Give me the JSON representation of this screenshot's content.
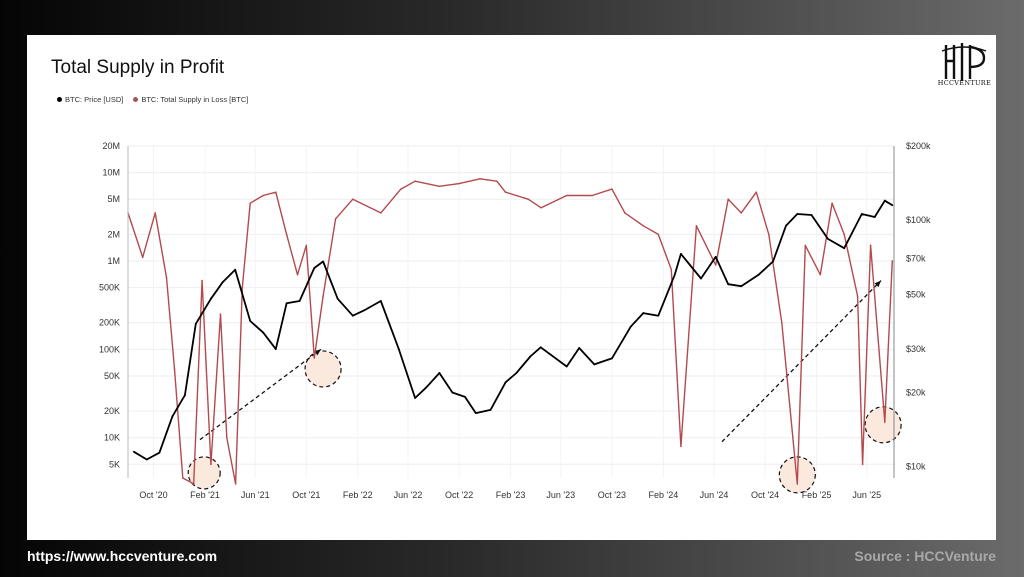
{
  "footer": {
    "url": "https://www.hccventure.com",
    "source": "Source : HCCVenture"
  },
  "logo": {
    "text": "HCCVENTURE",
    "icon": "hcc-logo-icon"
  },
  "colors": {
    "price": "#000000",
    "loss": "#b34a4e",
    "loss_upper": "#9e5a57",
    "circle_fill": "#fbe9de"
  },
  "chart_data": {
    "type": "line",
    "title": "Total Supply in Profit",
    "legend": [
      "BTC: Price [USD]",
      "BTC: Total Supply in Loss [BTC]"
    ],
    "legend_placement": "top-left",
    "x_ticks": [
      "Oct '20",
      "Feb '21",
      "Jun '21",
      "Oct '21",
      "Feb '22",
      "Jun '22",
      "Oct '22",
      "Feb '23",
      "Jun '23",
      "Oct '23",
      "Feb '24",
      "Jun '24",
      "Oct '24",
      "Feb '25",
      "Jun '25"
    ],
    "y_left_ticks": [
      "20M",
      "10M",
      "5M",
      "2M",
      "1M",
      "500K",
      "200K",
      "100K",
      "50K",
      "20K",
      "10K",
      "5K"
    ],
    "y_left_values": [
      20000000,
      10000000,
      5000000,
      2000000,
      1000000,
      500000,
      200000,
      100000,
      50000,
      20000,
      10000,
      5000
    ],
    "y_left_scale": "log",
    "y_right_ticks": [
      "$200k",
      "$100k",
      "$70k",
      "$50k",
      "$30k",
      "$20k",
      "$10k"
    ],
    "y_right_values": [
      200000,
      100000,
      70000,
      50000,
      30000,
      20000,
      10000
    ],
    "y_right_scale": "log",
    "series": [
      {
        "name": "BTC: Price [USD]",
        "axis": "right",
        "points": [
          [
            "2020-08-15",
            11500
          ],
          [
            "2020-09-15",
            10700
          ],
          [
            "2020-10-15",
            11400
          ],
          [
            "2020-11-15",
            16000
          ],
          [
            "2020-12-15",
            19500
          ],
          [
            "2021-01-10",
            38000
          ],
          [
            "2021-02-15",
            48000
          ],
          [
            "2021-03-15",
            56000
          ],
          [
            "2021-04-14",
            63000
          ],
          [
            "2021-05-20",
            39000
          ],
          [
            "2021-06-20",
            35000
          ],
          [
            "2021-07-20",
            30000
          ],
          [
            "2021-08-15",
            46000
          ],
          [
            "2021-09-15",
            47000
          ],
          [
            "2021-10-20",
            64000
          ],
          [
            "2021-11-10",
            68000
          ],
          [
            "2021-12-15",
            48000
          ],
          [
            "2022-01-20",
            41000
          ],
          [
            "2022-02-15",
            43000
          ],
          [
            "2022-03-28",
            47000
          ],
          [
            "2022-05-10",
            30000
          ],
          [
            "2022-06-18",
            19000
          ],
          [
            "2022-07-15",
            21000
          ],
          [
            "2022-08-15",
            24000
          ],
          [
            "2022-09-15",
            20000
          ],
          [
            "2022-10-15",
            19200
          ],
          [
            "2022-11-10",
            16500
          ],
          [
            "2022-12-15",
            17000
          ],
          [
            "2023-01-20",
            22000
          ],
          [
            "2023-02-15",
            24000
          ],
          [
            "2023-03-20",
            28000
          ],
          [
            "2023-04-14",
            30500
          ],
          [
            "2023-06-15",
            25500
          ],
          [
            "2023-07-15",
            30300
          ],
          [
            "2023-08-20",
            26000
          ],
          [
            "2023-10-01",
            27500
          ],
          [
            "2023-11-15",
            37000
          ],
          [
            "2023-12-15",
            42000
          ],
          [
            "2024-01-20",
            41000
          ],
          [
            "2024-02-28",
            60000
          ],
          [
            "2024-03-14",
            73000
          ],
          [
            "2024-05-01",
            58000
          ],
          [
            "2024-06-05",
            71000
          ],
          [
            "2024-07-05",
            55000
          ],
          [
            "2024-08-05",
            54000
          ],
          [
            "2024-09-15",
            60000
          ],
          [
            "2024-10-20",
            68000
          ],
          [
            "2024-11-20",
            95000
          ],
          [
            "2024-12-17",
            106000
          ],
          [
            "2025-01-20",
            105000
          ],
          [
            "2025-02-28",
            84000
          ],
          [
            "2025-04-08",
            77000
          ],
          [
            "2025-05-20",
            106000
          ],
          [
            "2025-06-20",
            103000
          ],
          [
            "2025-07-14",
            120000
          ],
          [
            "2025-08-01",
            115000
          ]
        ]
      },
      {
        "name": "BTC: Total Supply in Loss [BTC]",
        "axis": "left",
        "points": [
          [
            "2020-08-01",
            3500000
          ],
          [
            "2020-09-05",
            1100000
          ],
          [
            "2020-10-05",
            3500000
          ],
          [
            "2020-11-01",
            650000
          ],
          [
            "2020-11-20",
            60000
          ],
          [
            "2020-12-10",
            3500
          ],
          [
            "2021-01-05",
            3000
          ],
          [
            "2021-01-25",
            600000
          ],
          [
            "2021-02-15",
            5000
          ],
          [
            "2021-03-10",
            250000
          ],
          [
            "2021-03-25",
            10000
          ],
          [
            "2021-04-15",
            3000
          ],
          [
            "2021-05-01",
            500000
          ],
          [
            "2021-05-20",
            4500000
          ],
          [
            "2021-06-20",
            5500000
          ],
          [
            "2021-07-20",
            6000000
          ],
          [
            "2021-08-15",
            2000000
          ],
          [
            "2021-09-10",
            700000
          ],
          [
            "2021-10-01",
            1500000
          ],
          [
            "2021-10-20",
            80000
          ],
          [
            "2021-11-10",
            400000
          ],
          [
            "2021-12-10",
            3000000
          ],
          [
            "2022-01-20",
            5000000
          ],
          [
            "2022-03-28",
            3500000
          ],
          [
            "2022-05-15",
            6500000
          ],
          [
            "2022-06-18",
            8000000
          ],
          [
            "2022-08-15",
            7000000
          ],
          [
            "2022-10-01",
            7500000
          ],
          [
            "2022-11-20",
            8500000
          ],
          [
            "2022-12-30",
            8000000
          ],
          [
            "2023-01-20",
            6000000
          ],
          [
            "2023-03-15",
            5000000
          ],
          [
            "2023-04-15",
            4000000
          ],
          [
            "2023-06-15",
            5500000
          ],
          [
            "2023-08-15",
            5500000
          ],
          [
            "2023-10-01",
            6500000
          ],
          [
            "2023-11-01",
            3500000
          ],
          [
            "2023-12-15",
            2500000
          ],
          [
            "2024-01-20",
            2000000
          ],
          [
            "2024-02-20",
            800000
          ],
          [
            "2024-03-14",
            8000
          ],
          [
            "2024-04-20",
            2500000
          ],
          [
            "2024-06-05",
            900000
          ],
          [
            "2024-07-05",
            5000000
          ],
          [
            "2024-08-05",
            3500000
          ],
          [
            "2024-09-10",
            6000000
          ],
          [
            "2024-10-10",
            2000000
          ],
          [
            "2024-11-10",
            200000
          ],
          [
            "2024-12-17",
            3000
          ],
          [
            "2025-01-05",
            1500000
          ],
          [
            "2025-02-10",
            700000
          ],
          [
            "2025-03-10",
            4500000
          ],
          [
            "2025-04-08",
            2000000
          ],
          [
            "2025-05-10",
            400000
          ],
          [
            "2025-05-22",
            5000
          ],
          [
            "2025-06-10",
            1500000
          ],
          [
            "2025-07-14",
            15000
          ],
          [
            "2025-08-01",
            1000000
          ]
        ]
      }
    ],
    "x_range": [
      "2020-08-01",
      "2025-08-05"
    ],
    "y_left_range": [
      3500,
      20000000
    ],
    "y_right_range": [
      9000,
      200000
    ],
    "grid": true
  }
}
